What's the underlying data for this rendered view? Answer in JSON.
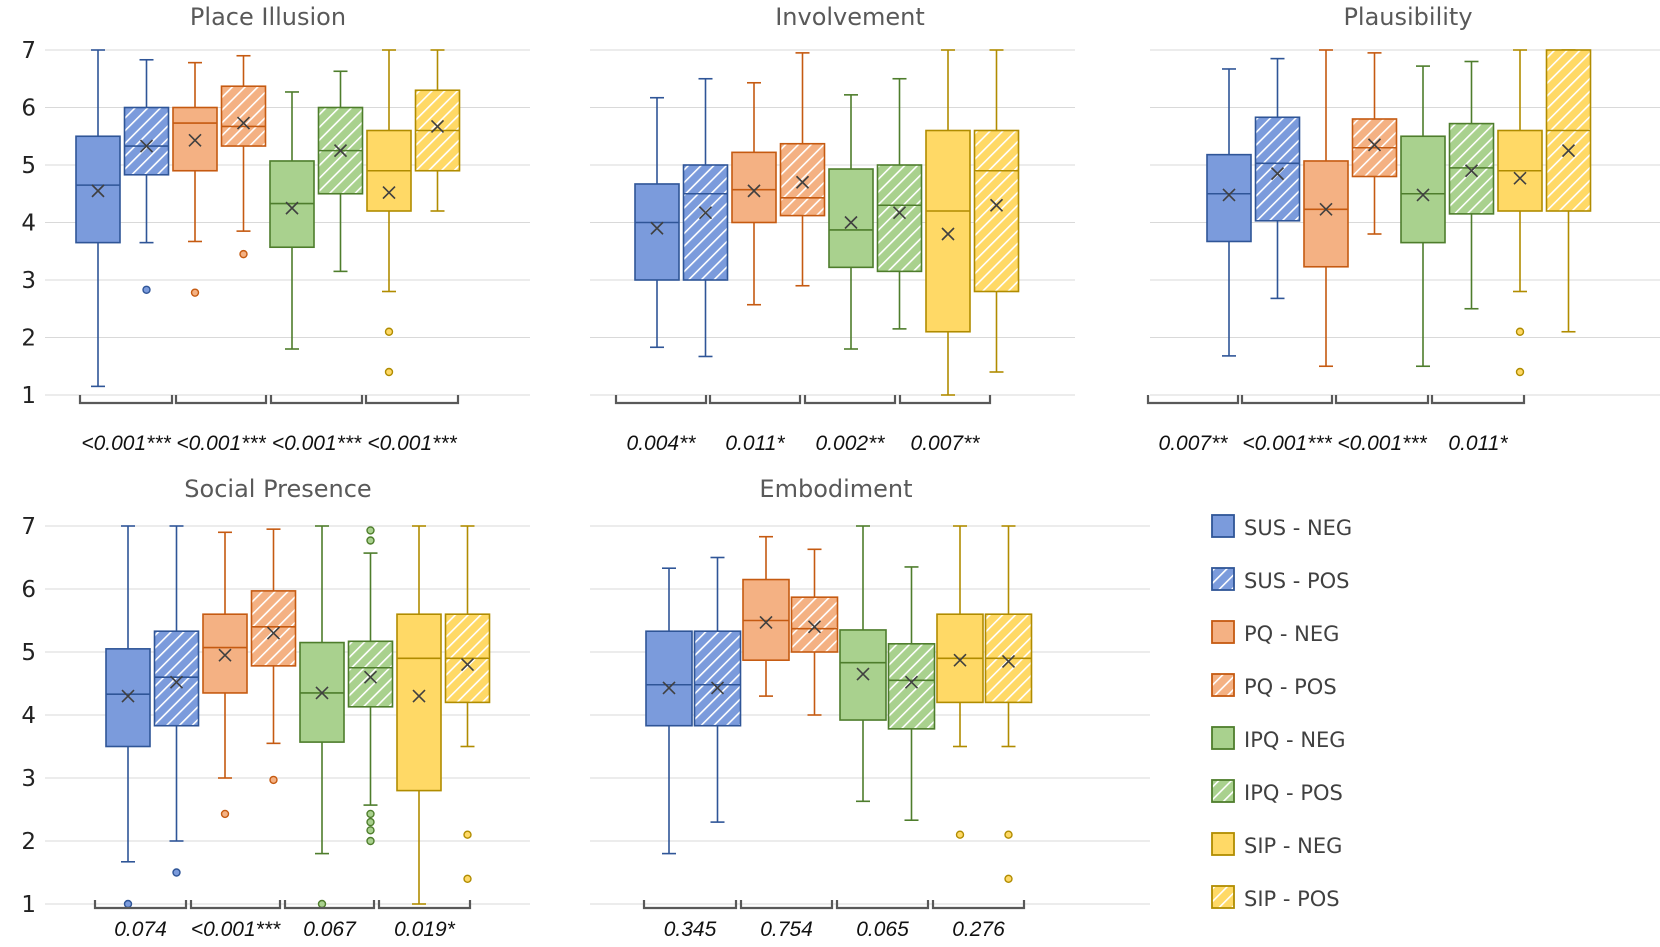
{
  "chart_data": {
    "type": "boxplot",
    "ylim": [
      1,
      7
    ],
    "yticks": [
      1,
      2,
      3,
      4,
      5,
      6,
      7
    ],
    "series": [
      {
        "name": "SUS - NEG",
        "color": "#7b9bdc",
        "stroke": "#2f5597",
        "hatch": false
      },
      {
        "name": "SUS - POS",
        "color": "#7b9bdc",
        "stroke": "#2f5597",
        "hatch": true
      },
      {
        "name": "PQ - NEG",
        "color": "#f4b183",
        "stroke": "#c55a11",
        "hatch": false
      },
      {
        "name": "PQ - POS",
        "color": "#f4b183",
        "stroke": "#c55a11",
        "hatch": true
      },
      {
        "name": "IPQ - NEG",
        "color": "#a9d18e",
        "stroke": "#4e7d2c",
        "hatch": false
      },
      {
        "name": "IPQ - POS",
        "color": "#a9d18e",
        "stroke": "#4e7d2c",
        "hatch": true
      },
      {
        "name": "SIP - NEG",
        "color": "#ffd966",
        "stroke": "#b08c00",
        "hatch": false
      },
      {
        "name": "SIP - POS",
        "color": "#ffd966",
        "stroke": "#b08c00",
        "hatch": true
      }
    ],
    "panels": [
      {
        "title": "Place Illusion",
        "pvalues": [
          "<0.001***",
          "<0.001***",
          "<0.001***",
          "<0.001***"
        ],
        "boxes": [
          {
            "min": 1.15,
            "q1": 3.65,
            "median": 4.65,
            "q3": 5.5,
            "max": 7.0,
            "mean": 4.55,
            "outliers": []
          },
          {
            "min": 3.65,
            "q1": 4.83,
            "median": 5.33,
            "q3": 6.0,
            "max": 6.83,
            "mean": 5.33,
            "outliers": [
              2.83
            ]
          },
          {
            "min": 3.67,
            "q1": 4.9,
            "median": 5.73,
            "q3": 6.0,
            "max": 6.78,
            "mean": 5.43,
            "outliers": [
              2.78
            ]
          },
          {
            "min": 3.85,
            "q1": 5.33,
            "median": 5.67,
            "q3": 6.37,
            "max": 6.9,
            "mean": 5.73,
            "outliers": [
              3.45
            ]
          },
          {
            "min": 1.8,
            "q1": 3.57,
            "median": 4.33,
            "q3": 5.07,
            "max": 6.27,
            "mean": 4.25,
            "outliers": []
          },
          {
            "min": 3.15,
            "q1": 4.5,
            "median": 5.25,
            "q3": 6.0,
            "max": 6.63,
            "mean": 5.25,
            "outliers": []
          },
          {
            "min": 2.8,
            "q1": 4.2,
            "median": 4.9,
            "q3": 5.6,
            "max": 7.0,
            "mean": 4.52,
            "outliers": [
              2.1,
              1.4
            ]
          },
          {
            "min": 4.2,
            "q1": 4.9,
            "median": 5.6,
            "q3": 6.3,
            "max": 7.0,
            "mean": 5.67,
            "outliers": []
          }
        ]
      },
      {
        "title": "Involvement",
        "pvalues": [
          "0.004**",
          "0.011*",
          "0.002**",
          "0.007**"
        ],
        "boxes": [
          {
            "min": 1.83,
            "q1": 3.0,
            "median": 4.0,
            "q3": 4.67,
            "max": 6.17,
            "mean": 3.9,
            "outliers": []
          },
          {
            "min": 1.67,
            "q1": 3.0,
            "median": 4.5,
            "q3": 5.0,
            "max": 6.5,
            "mean": 4.17,
            "outliers": []
          },
          {
            "min": 2.57,
            "q1": 4.0,
            "median": 4.57,
            "q3": 5.22,
            "max": 6.43,
            "mean": 4.55,
            "outliers": []
          },
          {
            "min": 2.9,
            "q1": 4.12,
            "median": 4.43,
            "q3": 5.37,
            "max": 6.95,
            "mean": 4.7,
            "outliers": []
          },
          {
            "min": 1.8,
            "q1": 3.22,
            "median": 3.87,
            "q3": 4.93,
            "max": 6.22,
            "mean": 4.0,
            "outliers": []
          },
          {
            "min": 2.15,
            "q1": 3.15,
            "median": 4.3,
            "q3": 5.0,
            "max": 6.5,
            "mean": 4.17,
            "outliers": []
          },
          {
            "min": 1.0,
            "q1": 2.1,
            "median": 4.2,
            "q3": 5.6,
            "max": 7.0,
            "mean": 3.8,
            "outliers": []
          },
          {
            "min": 1.4,
            "q1": 2.8,
            "median": 4.9,
            "q3": 5.6,
            "max": 7.0,
            "mean": 4.3,
            "outliers": []
          }
        ]
      },
      {
        "title": "Plausibility",
        "pvalues": [
          "0.007**",
          "<0.001***",
          "<0.001***",
          "0.011*"
        ],
        "boxes": [
          {
            "min": 1.68,
            "q1": 3.67,
            "median": 4.5,
            "q3": 5.18,
            "max": 6.67,
            "mean": 4.48,
            "outliers": []
          },
          {
            "min": 2.68,
            "q1": 4.03,
            "median": 5.03,
            "q3": 5.83,
            "max": 6.85,
            "mean": 4.85,
            "outliers": []
          },
          {
            "min": 1.5,
            "q1": 3.23,
            "median": 4.23,
            "q3": 5.07,
            "max": 7.0,
            "mean": 4.23,
            "outliers": []
          },
          {
            "min": 3.8,
            "q1": 4.8,
            "median": 5.3,
            "q3": 5.8,
            "max": 6.95,
            "mean": 5.35,
            "outliers": []
          },
          {
            "min": 1.5,
            "q1": 3.65,
            "median": 4.5,
            "q3": 5.5,
            "max": 6.72,
            "mean": 4.48,
            "outliers": []
          },
          {
            "min": 2.5,
            "q1": 4.15,
            "median": 4.95,
            "q3": 5.72,
            "max": 6.8,
            "mean": 4.9,
            "outliers": []
          },
          {
            "min": 2.8,
            "q1": 4.2,
            "median": 4.9,
            "q3": 5.6,
            "max": 7.0,
            "mean": 4.77,
            "outliers": [
              2.1,
              1.4
            ]
          },
          {
            "min": 2.1,
            "q1": 4.2,
            "median": 5.6,
            "q3": 7.0,
            "max": 7.0,
            "mean": 5.25,
            "outliers": []
          }
        ]
      },
      {
        "title": "Social Presence",
        "pvalues": [
          "0.074",
          "<0.001***",
          "0.067",
          "0.019*"
        ],
        "boxes": [
          {
            "min": 1.67,
            "q1": 3.5,
            "median": 4.33,
            "q3": 5.05,
            "max": 7.0,
            "mean": 4.3,
            "outliers": [
              1.0
            ]
          },
          {
            "min": 2.0,
            "q1": 3.83,
            "median": 4.6,
            "q3": 5.33,
            "max": 7.0,
            "mean": 4.52,
            "outliers": [
              1.5
            ]
          },
          {
            "min": 3.0,
            "q1": 4.35,
            "median": 5.07,
            "q3": 5.6,
            "max": 6.9,
            "mean": 4.95,
            "outliers": [
              2.43
            ]
          },
          {
            "min": 3.55,
            "q1": 4.78,
            "median": 5.4,
            "q3": 5.97,
            "max": 6.95,
            "mean": 5.3,
            "outliers": [
              2.97
            ]
          },
          {
            "min": 1.8,
            "q1": 3.57,
            "median": 4.35,
            "q3": 5.15,
            "max": 7.0,
            "mean": 4.35,
            "outliers": [
              1.0
            ]
          },
          {
            "min": 2.57,
            "q1": 4.13,
            "median": 4.75,
            "q3": 5.17,
            "max": 6.57,
            "mean": 4.6,
            "outliers": [
              6.93,
              6.77,
              2.43,
              2.3,
              2.17,
              2.0
            ]
          },
          {
            "min": 1.0,
            "q1": 2.8,
            "median": 4.9,
            "q3": 5.6,
            "max": 7.0,
            "mean": 4.3,
            "outliers": []
          },
          {
            "min": 3.5,
            "q1": 4.2,
            "median": 4.9,
            "q3": 5.6,
            "max": 7.0,
            "mean": 4.8,
            "outliers": [
              2.1,
              1.4
            ]
          }
        ]
      },
      {
        "title": "Embodiment",
        "pvalues": [
          "0.345",
          "0.754",
          "0.065",
          "0.276"
        ],
        "boxes": [
          {
            "min": 1.8,
            "q1": 3.83,
            "median": 4.48,
            "q3": 5.33,
            "max": 6.33,
            "mean": 4.43,
            "outliers": []
          },
          {
            "min": 2.3,
            "q1": 3.83,
            "median": 4.48,
            "q3": 5.33,
            "max": 6.5,
            "mean": 4.43,
            "outliers": []
          },
          {
            "min": 4.3,
            "q1": 4.87,
            "median": 5.5,
            "q3": 6.15,
            "max": 6.83,
            "mean": 5.47,
            "outliers": []
          },
          {
            "min": 4.0,
            "q1": 5.0,
            "median": 5.37,
            "q3": 5.87,
            "max": 6.63,
            "mean": 5.4,
            "outliers": []
          },
          {
            "min": 2.63,
            "q1": 3.92,
            "median": 4.83,
            "q3": 5.35,
            "max": 7.0,
            "mean": 4.65,
            "outliers": []
          },
          {
            "min": 2.33,
            "q1": 3.78,
            "median": 4.55,
            "q3": 5.13,
            "max": 6.35,
            "mean": 4.52,
            "outliers": []
          },
          {
            "min": 3.5,
            "q1": 4.2,
            "median": 4.9,
            "q3": 5.6,
            "max": 7.0,
            "mean": 4.87,
            "outliers": [
              2.1
            ]
          },
          {
            "min": 3.5,
            "q1": 4.2,
            "median": 4.9,
            "q3": 5.6,
            "max": 7.0,
            "mean": 4.85,
            "outliers": [
              2.1,
              1.4
            ]
          }
        ]
      }
    ]
  }
}
